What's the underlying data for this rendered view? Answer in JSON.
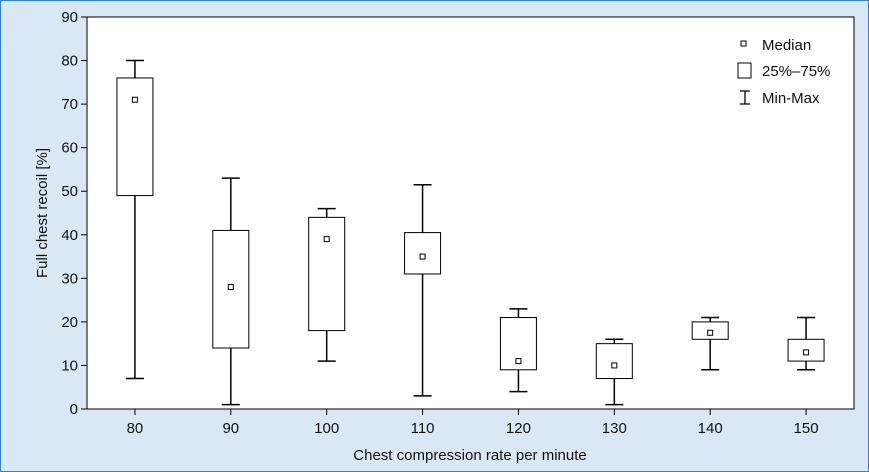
{
  "chart_data": {
    "type": "box",
    "xlabel": "Chest compression rate per minute",
    "ylabel": "Full chest recoil [%]",
    "ylim": [
      0,
      90
    ],
    "yticks": [
      0,
      10,
      20,
      30,
      40,
      50,
      60,
      70,
      80,
      90
    ],
    "categories": [
      "80",
      "90",
      "100",
      "110",
      "120",
      "130",
      "140",
      "150"
    ],
    "series": [
      {
        "category": "80",
        "min": 7,
        "q1": 49,
        "median": 71,
        "q3": 76,
        "max": 80
      },
      {
        "category": "90",
        "min": 1,
        "q1": 14,
        "median": 28,
        "q3": 41,
        "max": 53
      },
      {
        "category": "100",
        "min": 11,
        "q1": 18,
        "median": 39,
        "q3": 44,
        "max": 46
      },
      {
        "category": "110",
        "min": 3,
        "q1": 31,
        "median": 35,
        "q3": 40.5,
        "max": 51.5
      },
      {
        "category": "120",
        "min": 4,
        "q1": 9,
        "median": 11,
        "q3": 21,
        "max": 23
      },
      {
        "category": "130",
        "min": 1,
        "q1": 7,
        "median": 10,
        "q3": 15,
        "max": 16
      },
      {
        "category": "140",
        "min": 9,
        "q1": 16,
        "median": 17.5,
        "q3": 20,
        "max": 21
      },
      {
        "category": "150",
        "min": 9,
        "q1": 11,
        "median": 13,
        "q3": 16,
        "max": 21
      }
    ],
    "legend": {
      "position": "top-right",
      "items": [
        {
          "symbol": "median",
          "label": "Median"
        },
        {
          "symbol": "box",
          "label": "25%–75%"
        },
        {
          "symbol": "whisker",
          "label": "Min-Max"
        }
      ]
    },
    "grid": false
  }
}
